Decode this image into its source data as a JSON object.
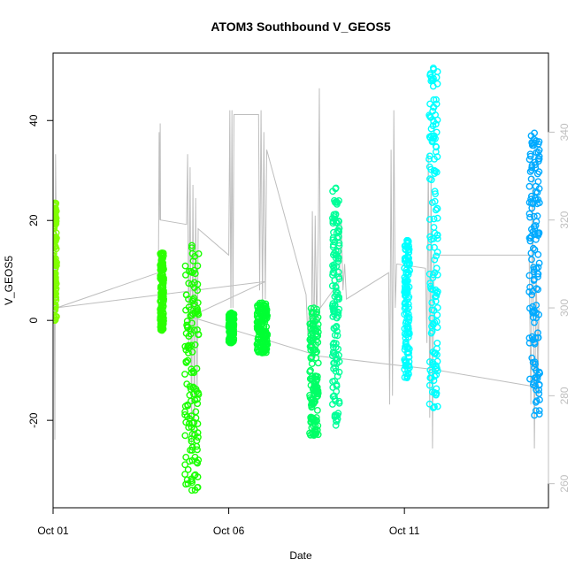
{
  "chart_data": {
    "type": "scatter",
    "title": "ATOM3 Southbound V_GEOS5",
    "xlabel": "Date",
    "ylabel": "V_GEOS5",
    "xlim": [
      0.0,
      14.1
    ],
    "ylim": [
      -37.5,
      53.5
    ],
    "x_ticks": [
      {
        "value": 0.0,
        "label": "Oct 01"
      },
      {
        "value": 5.0,
        "label": "Oct 06"
      },
      {
        "value": 10.0,
        "label": "Oct 11"
      }
    ],
    "y_ticks": [
      -20,
      0,
      20,
      40
    ],
    "right_axis": {
      "ylim": [
        254.5,
        358.0
      ],
      "ticks": [
        260,
        280,
        300,
        320,
        340
      ],
      "color": "#bfbfbf"
    },
    "grey_line_color": "#bebebe",
    "grey_line": [
      [
        0.0,
        300.0
      ],
      [
        0.03,
        312.0
      ],
      [
        0.05,
        270.0
      ],
      [
        0.07,
        335.0
      ],
      [
        0.09,
        318.0
      ],
      [
        0.1,
        300.0
      ],
      [
        3.0,
        308.0
      ],
      [
        3.02,
        340.0
      ],
      [
        3.04,
        320.0
      ],
      [
        3.05,
        342.0
      ],
      [
        3.06,
        320.0
      ],
      [
        3.8,
        319.0
      ],
      [
        3.83,
        335.0
      ],
      [
        3.86,
        290.0
      ],
      [
        3.9,
        332.0
      ],
      [
        3.94,
        268.0
      ],
      [
        3.98,
        328.0
      ],
      [
        4.02,
        270.0
      ],
      [
        4.06,
        325.0
      ],
      [
        4.1,
        280.0
      ],
      [
        4.13,
        318.0
      ],
      [
        5.0,
        312.0
      ],
      [
        5.03,
        345.0
      ],
      [
        5.06,
        300.0
      ],
      [
        5.09,
        345.0
      ],
      [
        5.12,
        300.0
      ],
      [
        5.15,
        344.0
      ],
      [
        5.85,
        344.0
      ],
      [
        5.88,
        304.0
      ],
      [
        5.92,
        345.0
      ],
      [
        5.96,
        300.0
      ],
      [
        6.0,
        340.0
      ],
      [
        6.04,
        302.0
      ],
      [
        6.08,
        336.0
      ],
      [
        7.2,
        303.0
      ],
      [
        7.25,
        294.0
      ],
      [
        7.3,
        300.0
      ],
      [
        7.35,
        288.0
      ],
      [
        7.38,
        322.0
      ],
      [
        7.42,
        288.0
      ],
      [
        7.46,
        321.0
      ],
      [
        7.5,
        296.0
      ],
      [
        7.55,
        318.0
      ],
      [
        7.58,
        350.0
      ],
      [
        7.61,
        300.0
      ],
      [
        8.15,
        306.0
      ],
      [
        8.2,
        320.0
      ],
      [
        8.25,
        304.0
      ],
      [
        8.3,
        310.0
      ],
      [
        8.35,
        302.0
      ],
      [
        9.55,
        308.0
      ],
      [
        9.58,
        278.0
      ],
      [
        9.62,
        336.0
      ],
      [
        9.66,
        280.0
      ],
      [
        9.7,
        345.0
      ],
      [
        9.74,
        300.0
      ],
      [
        9.78,
        310.0
      ],
      [
        10.6,
        309.0
      ],
      [
        10.64,
        292.0
      ],
      [
        10.68,
        335.0
      ],
      [
        10.72,
        275.0
      ],
      [
        10.76,
        330.0
      ],
      [
        10.8,
        268.0
      ],
      [
        10.84,
        312.0
      ],
      [
        13.55,
        312.0
      ],
      [
        13.6,
        278.0
      ],
      [
        13.65,
        330.0
      ],
      [
        13.7,
        268.0
      ],
      [
        13.75,
        310.0
      ],
      [
        13.8,
        280.0
      ],
      [
        13.83,
        300.0
      ],
      [
        13.75,
        282.0
      ],
      [
        10.82,
        286.0
      ],
      [
        7.6,
        289.0
      ],
      [
        3.9,
        298.0
      ],
      [
        6.05,
        306.0
      ],
      [
        0.08,
        300.0
      ]
    ],
    "series": [
      {
        "color": "#80ff00",
        "x_start": 0.0,
        "x_end": 0.1,
        "y_min": 0.0,
        "y_max": 23.5
      },
      {
        "color": "#2bff00",
        "x_start": 3.05,
        "x_end": 3.15,
        "y_min": -2.0,
        "y_max": 13.5
      },
      {
        "color": "#1aff00",
        "x_start": 3.75,
        "x_end": 4.15,
        "y_min": -34.0,
        "y_max": 15.0
      },
      {
        "color": "#00ff2b",
        "x_start": 5.0,
        "x_end": 5.15,
        "y_min": -4.5,
        "y_max": 1.5
      },
      {
        "color": "#00ff33",
        "x_start": 5.8,
        "x_end": 6.1,
        "y_min": -6.5,
        "y_max": 3.5
      },
      {
        "color": "#00ff66",
        "x_start": 7.3,
        "x_end": 7.55,
        "y_min": -23.0,
        "y_max": 2.5
      },
      {
        "color": "#00ff99",
        "x_start": 7.95,
        "x_end": 8.15,
        "y_min": -21.0,
        "y_max": 26.5
      },
      {
        "color": "#00ffff",
        "x_start": 10.0,
        "x_end": 10.15,
        "y_min": -11.5,
        "y_max": 16.0
      },
      {
        "color": "#00ffff",
        "x_start": 10.7,
        "x_end": 10.95,
        "y_min": -17.5,
        "y_max": 50.5
      },
      {
        "color": "#00aaff",
        "x_start": 13.55,
        "x_end": 13.85,
        "y_min": -19.0,
        "y_max": 37.5
      }
    ]
  }
}
